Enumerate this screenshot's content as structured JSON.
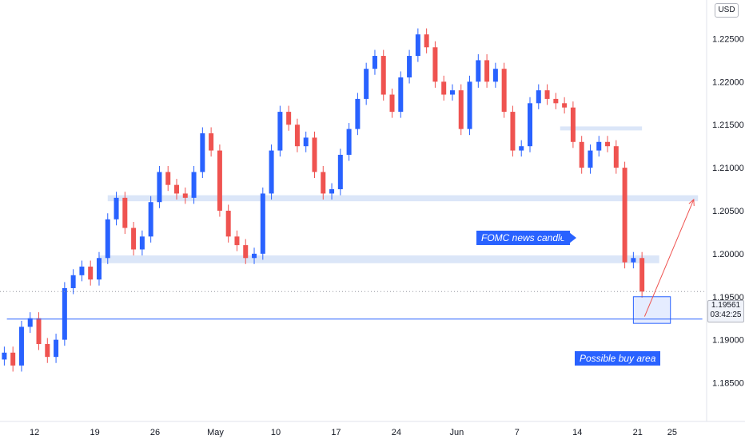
{
  "currency_label": "USD",
  "current_price": "1.19561",
  "countdown": "03:42:25",
  "annotations": {
    "fomc": "FOMC news candle",
    "buy_area": "Possible buy area"
  },
  "colors": {
    "up": "#2962ff",
    "down": "#ef5350",
    "zone_blue": "#dbe6f8",
    "zone_red": "#f6c5c4",
    "tag_blue": "#2962ff",
    "support_line": "#2962ff",
    "arrow": "#ef5350"
  },
  "chart_data": {
    "type": "candlestick",
    "instrument_note": "",
    "y_ticks": [
      "1.22500",
      "1.22000",
      "1.21500",
      "1.21000",
      "1.20500",
      "1.20000",
      "1.19500",
      "1.19000",
      "1.18500"
    ],
    "y_tick_values": [
      1.225,
      1.22,
      1.215,
      1.21,
      1.205,
      1.2,
      1.195,
      1.19,
      1.185
    ],
    "x_ticks": [
      "12",
      "19",
      "26",
      "May",
      "10",
      "17",
      "24",
      "Jun",
      "7",
      "14",
      "21",
      "25"
    ],
    "x_tick_days": [
      0,
      7,
      14,
      21,
      28,
      35,
      42,
      49,
      56,
      63,
      70,
      74
    ],
    "x_range_days": [
      -4,
      78
    ],
    "y_range": [
      1.1805,
      1.2295
    ],
    "series": [
      {
        "x": -3.5,
        "close": 1.1885
      },
      {
        "x": -2.5,
        "close": 1.187
      },
      {
        "x": -1.5,
        "close": 1.1915
      },
      {
        "x": -0.5,
        "close": 1.1925
      },
      {
        "x": 0.5,
        "close": 1.1895
      },
      {
        "x": 1.5,
        "close": 1.188
      },
      {
        "x": 2.5,
        "close": 1.19
      },
      {
        "x": 3.5,
        "close": 1.196
      },
      {
        "x": 4.5,
        "close": 1.1975
      },
      {
        "x": 5.5,
        "close": 1.1985
      },
      {
        "x": 6.5,
        "close": 1.197
      },
      {
        "x": 7.5,
        "close": 1.1995
      },
      {
        "x": 8.5,
        "close": 1.204
      },
      {
        "x": 9.5,
        "close": 1.2065
      },
      {
        "x": 10.5,
        "close": 1.203
      },
      {
        "x": 11.5,
        "close": 1.2005
      },
      {
        "x": 12.5,
        "close": 1.202
      },
      {
        "x": 13.5,
        "close": 1.206
      },
      {
        "x": 14.5,
        "close": 1.2095
      },
      {
        "x": 15.5,
        "close": 1.208
      },
      {
        "x": 16.5,
        "close": 1.207
      },
      {
        "x": 17.5,
        "close": 1.2065
      },
      {
        "x": 18.5,
        "close": 1.2095
      },
      {
        "x": 19.5,
        "close": 1.214
      },
      {
        "x": 20.5,
        "close": 1.212
      },
      {
        "x": 21.5,
        "close": 1.205
      },
      {
        "x": 22.5,
        "close": 1.202
      },
      {
        "x": 23.5,
        "close": 1.201
      },
      {
        "x": 24.5,
        "close": 1.1995
      },
      {
        "x": 25.5,
        "close": 1.2
      },
      {
        "x": 26.5,
        "close": 1.207
      },
      {
        "x": 27.5,
        "close": 1.212
      },
      {
        "x": 28.5,
        "close": 1.2165
      },
      {
        "x": 29.5,
        "close": 1.215
      },
      {
        "x": 30.5,
        "close": 1.2125
      },
      {
        "x": 31.5,
        "close": 1.2135
      },
      {
        "x": 32.5,
        "close": 1.2095
      },
      {
        "x": 33.5,
        "close": 1.207
      },
      {
        "x": 34.5,
        "close": 1.2075
      },
      {
        "x": 35.5,
        "close": 1.2115
      },
      {
        "x": 36.5,
        "close": 1.2145
      },
      {
        "x": 37.5,
        "close": 1.218
      },
      {
        "x": 38.5,
        "close": 1.2215
      },
      {
        "x": 39.5,
        "close": 1.223
      },
      {
        "x": 40.5,
        "close": 1.2185
      },
      {
        "x": 41.5,
        "close": 1.2165
      },
      {
        "x": 42.5,
        "close": 1.2205
      },
      {
        "x": 43.5,
        "close": 1.223
      },
      {
        "x": 44.5,
        "close": 1.2255
      },
      {
        "x": 45.5,
        "close": 1.224
      },
      {
        "x": 46.5,
        "close": 1.22
      },
      {
        "x": 47.5,
        "close": 1.2185
      },
      {
        "x": 48.5,
        "close": 1.219
      },
      {
        "x": 49.5,
        "close": 1.2145
      },
      {
        "x": 50.5,
        "close": 1.22
      },
      {
        "x": 51.5,
        "close": 1.2225
      },
      {
        "x": 52.5,
        "close": 1.22
      },
      {
        "x": 53.5,
        "close": 1.2215
      },
      {
        "x": 54.5,
        "close": 1.2165
      },
      {
        "x": 55.5,
        "close": 1.212
      },
      {
        "x": 56.5,
        "close": 1.2125
      },
      {
        "x": 57.5,
        "close": 1.2175
      },
      {
        "x": 58.5,
        "close": 1.219
      },
      {
        "x": 59.5,
        "close": 1.218
      },
      {
        "x": 60.5,
        "close": 1.2175
      },
      {
        "x": 61.5,
        "close": 1.217
      },
      {
        "x": 62.5,
        "close": 1.213
      },
      {
        "x": 63.5,
        "close": 1.21
      },
      {
        "x": 64.5,
        "close": 1.212
      },
      {
        "x": 65.5,
        "close": 1.213
      },
      {
        "x": 66.5,
        "close": 1.2125
      },
      {
        "x": 67.5,
        "close": 1.21
      },
      {
        "x": 68.5,
        "close": 1.199
      },
      {
        "x": 69.5,
        "close": 1.1995
      },
      {
        "x": 70.5,
        "close": 1.1956
      }
    ],
    "zones": [
      {
        "kind": "support",
        "from_day": 7.5,
        "to_day": 72.5,
        "low": 1.1989,
        "high": 1.1998
      },
      {
        "kind": "resistance",
        "from_day": 8.5,
        "to_day": 77.0,
        "low": 1.2061,
        "high": 1.2068
      },
      {
        "kind": "resistance",
        "from_day": 61.0,
        "to_day": 70.5,
        "low": 1.2144,
        "high": 1.2148
      }
    ],
    "support_line": 1.1924,
    "buy_box": {
      "from_day": 69.5,
      "to_day": 73.8,
      "low": 1.1919,
      "high": 1.195
    },
    "arrow": {
      "from_day": 70.8,
      "from_price": 1.1927,
      "to_day": 76.5,
      "to_price": 1.2063
    },
    "grid": false,
    "legend": "none"
  }
}
